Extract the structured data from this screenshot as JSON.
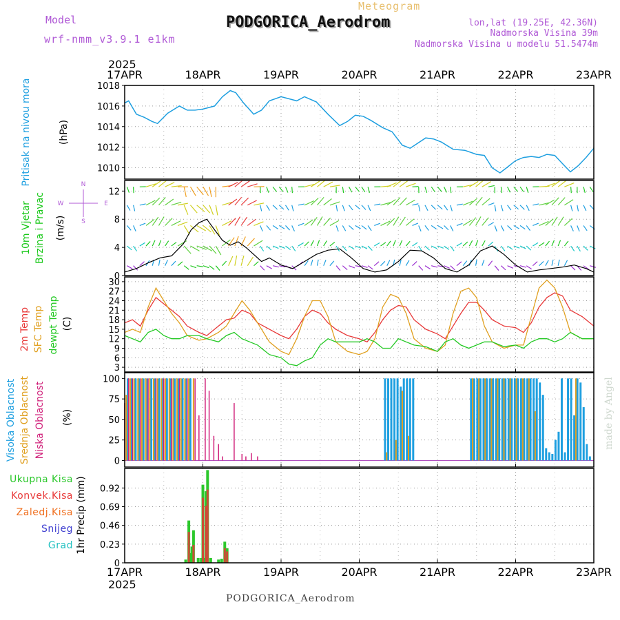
{
  "header": {
    "model_label": "Model",
    "model_name": "wrf-nmm_v3.9.1 e1km",
    "meteogram_label": "Meteogram",
    "station": "PODGORICA_Aerodrom",
    "lonlat": "lon,lat (19.25E, 42.36N)",
    "altitude": "Nadmorska Visina 39m",
    "model_altitude": "Nadmorska Visina u modelu 51.5474m",
    "year": "2025",
    "footer_station": "PODGORICA_Aerodrom",
    "credit": "made by Angel"
  },
  "colors": {
    "pressure": "#1e9fe0",
    "wind": "#19c819",
    "temp2m": "#e83838",
    "sfc": "#e0a020",
    "dewpt": "#22c822",
    "high_cloud": "#1e9fe0",
    "mid_cloud": "#e0a020",
    "low_cloud": "#d0207a",
    "total_precip": "#2cc82c",
    "conv_precip": "#e83838",
    "frozen": "#f07020",
    "snow": "#4040d0",
    "hail": "#20c0c0",
    "purple_text": "#b05ad6"
  },
  "chart_data": [
    {
      "type": "line",
      "panel": "pressure",
      "ylabel_lines": [
        "Pritisak na nivou mora"
      ],
      "unit": "(hPa)",
      "x_ticks": [
        "17APR",
        "18APR",
        "19APR",
        "20APR",
        "21APR",
        "22APR",
        "23APR"
      ],
      "x_range_days": [
        0,
        6
      ],
      "ylim": [
        1008.9,
        1018.0
      ],
      "yticks": [
        1010,
        1012,
        1014,
        1016,
        1018
      ],
      "grid": true,
      "series": [
        {
          "x": [
            0.0,
            0.05,
            0.15,
            0.25,
            0.35,
            0.42,
            0.55,
            0.7,
            0.8,
            0.9,
            1.0,
            1.15,
            1.25,
            1.35,
            1.42,
            1.52,
            1.65,
            1.75,
            1.85,
            2.0,
            2.1,
            2.2,
            2.3,
            2.45,
            2.6,
            2.75,
            2.85,
            2.95,
            3.05,
            3.15,
            3.3,
            3.42,
            3.55,
            3.65,
            3.75,
            3.85,
            3.95,
            4.05,
            4.2,
            4.35,
            4.5,
            4.6,
            4.7,
            4.8,
            4.9,
            5.0,
            5.1,
            5.2,
            5.3,
            5.4,
            5.5,
            5.6,
            5.7,
            5.8,
            5.9,
            6.0
          ],
          "y": [
            1016.3,
            1016.5,
            1015.2,
            1014.9,
            1014.5,
            1014.3,
            1015.3,
            1016.0,
            1015.6,
            1015.6,
            1015.7,
            1016.0,
            1016.9,
            1017.5,
            1017.3,
            1016.3,
            1015.2,
            1015.6,
            1016.5,
            1016.9,
            1016.7,
            1016.5,
            1016.9,
            1016.4,
            1015.2,
            1014.1,
            1014.5,
            1015.1,
            1015.0,
            1014.6,
            1013.9,
            1013.5,
            1012.2,
            1011.9,
            1012.4,
            1012.9,
            1012.8,
            1012.5,
            1011.8,
            1011.7,
            1011.3,
            1011.2,
            1010.0,
            1009.5,
            1010.1,
            1010.7,
            1011.0,
            1011.1,
            1011.0,
            1011.3,
            1011.2,
            1010.4,
            1009.6,
            1010.2,
            1011.0,
            1011.9
          ]
        }
      ]
    },
    {
      "type": "line",
      "panel": "wind",
      "ylabel_lines": [
        "10m Vjetar",
        "Brzina i Pravac"
      ],
      "unit": "(m/s)",
      "compass": {
        "n": "N",
        "s": "S",
        "e": "E",
        "w": "W"
      },
      "ylim": [
        0,
        13.5
      ],
      "yticks": [
        0,
        4,
        8,
        12
      ],
      "grid": true,
      "series": [
        {
          "x": [
            0.0,
            0.15,
            0.3,
            0.45,
            0.6,
            0.75,
            0.85,
            0.95,
            1.05,
            1.15,
            1.25,
            1.35,
            1.45,
            1.55,
            1.65,
            1.75,
            1.85,
            2.0,
            2.15,
            2.3,
            2.45,
            2.6,
            2.75,
            2.9,
            3.05,
            3.2,
            3.35,
            3.5,
            3.65,
            3.8,
            3.95,
            4.1,
            4.25,
            4.4,
            4.55,
            4.7,
            4.85,
            5.0,
            5.15,
            5.3,
            5.45,
            5.6,
            5.75,
            5.9,
            6.0
          ],
          "y": [
            0.5,
            1.0,
            1.8,
            2.5,
            2.8,
            4.5,
            6.5,
            7.5,
            8.0,
            6.5,
            5.0,
            4.3,
            4.8,
            4.0,
            3.0,
            2.0,
            2.5,
            1.5,
            1.0,
            2.0,
            3.0,
            3.6,
            3.8,
            2.5,
            1.0,
            0.5,
            0.8,
            2.0,
            3.6,
            3.5,
            2.5,
            1.0,
            0.5,
            1.5,
            3.5,
            4.2,
            3.0,
            1.5,
            0.5,
            0.8,
            1.0,
            1.2,
            1.5,
            1.0,
            0.5
          ]
        }
      ]
    },
    {
      "type": "line",
      "panel": "temperature",
      "ylabel_lines": [
        "2m Temp",
        "SFC Temp",
        "dewpt Temp"
      ],
      "unit": "(C)",
      "ylim": [
        1.5,
        31.5
      ],
      "yticks": [
        3,
        6,
        9,
        12,
        15,
        18,
        21,
        24,
        27,
        30
      ],
      "grid": true,
      "series": [
        {
          "name": "2m Temp",
          "x": [
            0.0,
            0.1,
            0.2,
            0.3,
            0.4,
            0.5,
            0.6,
            0.7,
            0.8,
            0.95,
            1.05,
            1.2,
            1.3,
            1.4,
            1.5,
            1.6,
            1.7,
            1.85,
            2.0,
            2.1,
            2.2,
            2.3,
            2.4,
            2.5,
            2.6,
            2.7,
            2.85,
            3.0,
            3.1,
            3.2,
            3.3,
            3.4,
            3.5,
            3.6,
            3.7,
            3.85,
            4.0,
            4.1,
            4.2,
            4.3,
            4.4,
            4.5,
            4.6,
            4.7,
            4.85,
            5.0,
            5.1,
            5.2,
            5.3,
            5.4,
            5.5,
            5.6,
            5.7,
            5.85,
            6.0
          ],
          "y": [
            17,
            18,
            16,
            21,
            25,
            23,
            21,
            19,
            16,
            14,
            13,
            16,
            18,
            18.5,
            21,
            20,
            17,
            15,
            13,
            12,
            15,
            19,
            21,
            20,
            17,
            15,
            13,
            12,
            11,
            14,
            18,
            21,
            22.5,
            22,
            18,
            15,
            13.5,
            12,
            16,
            20,
            23.5,
            23.5,
            21,
            18,
            16,
            15.5,
            14,
            17,
            22,
            25,
            26.5,
            25.5,
            21,
            19,
            16
          ]
        },
        {
          "name": "SFC Temp",
          "x": [
            0.0,
            0.1,
            0.2,
            0.3,
            0.4,
            0.5,
            0.6,
            0.7,
            0.8,
            0.95,
            1.05,
            1.2,
            1.3,
            1.4,
            1.5,
            1.6,
            1.7,
            1.85,
            2.0,
            2.1,
            2.2,
            2.3,
            2.4,
            2.5,
            2.6,
            2.7,
            2.85,
            3.0,
            3.1,
            3.2,
            3.3,
            3.4,
            3.5,
            3.6,
            3.7,
            3.85,
            4.0,
            4.1,
            4.2,
            4.3,
            4.4,
            4.5,
            4.6,
            4.7,
            4.85,
            5.0,
            5.1,
            5.2,
            5.3,
            5.4,
            5.5,
            5.6,
            5.7,
            5.85,
            6.0
          ],
          "y": [
            14,
            15,
            14,
            22,
            28,
            24,
            20,
            17,
            13,
            11.5,
            12,
            14,
            16,
            20,
            24,
            21,
            17,
            11,
            8,
            7,
            12,
            19,
            24,
            24,
            19,
            11,
            8,
            7,
            8,
            12,
            22,
            26,
            25,
            20,
            12,
            9,
            8,
            10,
            20,
            27,
            28,
            25,
            16,
            11,
            9,
            10,
            10,
            19,
            28,
            30.5,
            28,
            22,
            14,
            12,
            12
          ]
        },
        {
          "name": "dewpt Temp",
          "x": [
            0.0,
            0.1,
            0.2,
            0.3,
            0.4,
            0.5,
            0.6,
            0.7,
            0.8,
            0.95,
            1.05,
            1.2,
            1.3,
            1.4,
            1.5,
            1.6,
            1.7,
            1.85,
            2.0,
            2.1,
            2.2,
            2.3,
            2.4,
            2.5,
            2.6,
            2.7,
            2.85,
            3.0,
            3.1,
            3.2,
            3.3,
            3.4,
            3.5,
            3.6,
            3.7,
            3.85,
            4.0,
            4.1,
            4.2,
            4.3,
            4.4,
            4.5,
            4.6,
            4.7,
            4.85,
            5.0,
            5.1,
            5.2,
            5.3,
            5.4,
            5.5,
            5.6,
            5.7,
            5.85,
            6.0
          ],
          "y": [
            13,
            12,
            11,
            14,
            15,
            13,
            12,
            12,
            13,
            13,
            12,
            11,
            13,
            14,
            12,
            11,
            10,
            7,
            6,
            4,
            3.5,
            5,
            6,
            10,
            12,
            11,
            11,
            11,
            12,
            11,
            9,
            9,
            12,
            11,
            10,
            9.5,
            8,
            11,
            12,
            10,
            9,
            10,
            11,
            11,
            9.5,
            10,
            9,
            11,
            12,
            12,
            11,
            12,
            14,
            12,
            12
          ]
        }
      ]
    },
    {
      "type": "bar",
      "panel": "clouds",
      "ylabel_lines": [
        "Visoka Oblacnost",
        "Srednja Oblacnost",
        "Niska Oblacnost"
      ],
      "unit": "(%)",
      "ylim": [
        -8,
        107
      ],
      "yticks": [
        0,
        25,
        50,
        75,
        100
      ],
      "grid": true,
      "series": [
        {
          "name": "Visoka Oblacnost",
          "x": [
            0.04,
            0.09,
            0.14,
            0.19,
            0.24,
            0.29,
            0.34,
            0.39,
            0.44,
            0.49,
            0.54,
            0.59,
            0.64,
            0.69,
            0.74,
            0.79,
            0.84,
            3.33,
            3.37,
            3.41,
            3.45,
            3.49,
            3.53,
            3.57,
            3.61,
            3.65,
            3.69,
            4.43,
            4.47,
            4.51,
            4.55,
            4.59,
            4.63,
            4.67,
            4.71,
            4.75,
            4.79,
            4.83,
            4.87,
            4.91,
            4.95,
            4.99,
            5.03,
            5.07,
            5.11,
            5.15,
            5.19,
            5.23,
            5.27,
            5.31,
            5.35,
            5.39,
            5.43,
            5.47,
            5.51,
            5.55,
            5.59,
            5.63,
            5.67,
            5.71,
            5.75,
            5.79,
            5.83,
            5.87,
            5.91,
            5.95
          ],
          "values": [
            100,
            100,
            100,
            100,
            100,
            100,
            100,
            100,
            100,
            100,
            100,
            100,
            100,
            100,
            100,
            100,
            100,
            100,
            100,
            100,
            100,
            100,
            90,
            100,
            100,
            100,
            100,
            100,
            100,
            100,
            100,
            100,
            100,
            100,
            100,
            100,
            100,
            100,
            100,
            100,
            100,
            100,
            100,
            100,
            100,
            100,
            100,
            100,
            100,
            95,
            80,
            15,
            10,
            8,
            25,
            35,
            100,
            10,
            100,
            100,
            55,
            100,
            95,
            65,
            20,
            5
          ]
        },
        {
          "name": "Srednja Oblacnost",
          "x": [
            0.02,
            0.07,
            0.12,
            0.17,
            0.22,
            0.27,
            0.32,
            0.37,
            0.42,
            0.47,
            0.52,
            0.57,
            0.62,
            0.67,
            0.72,
            0.77,
            0.82,
            0.88,
            3.35,
            3.47,
            3.55,
            3.63,
            4.45,
            4.53,
            4.61,
            4.69,
            4.77,
            4.85,
            4.93,
            5.01,
            5.09,
            5.17,
            5.25,
            5.77
          ],
          "values": [
            80,
            100,
            100,
            100,
            100,
            100,
            100,
            100,
            100,
            100,
            100,
            100,
            100,
            100,
            100,
            100,
            100,
            100,
            10,
            25,
            85,
            30,
            100,
            100,
            100,
            100,
            100,
            100,
            100,
            100,
            100,
            100,
            60,
            100
          ]
        },
        {
          "name": "Niska Oblacnost",
          "x": [
            0.0,
            0.05,
            0.1,
            0.2,
            0.3,
            0.4,
            0.5,
            0.6,
            0.7,
            0.8,
            0.9,
            0.95,
            1.03,
            1.08,
            1.14,
            1.2,
            1.25,
            1.4,
            1.5,
            1.55,
            1.62,
            1.7
          ],
          "values": [
            70,
            100,
            100,
            100,
            100,
            100,
            100,
            100,
            100,
            100,
            100,
            55,
            100,
            85,
            30,
            20,
            5,
            70,
            8,
            5,
            9,
            5
          ]
        }
      ]
    },
    {
      "type": "bar",
      "panel": "precipitation",
      "ylabel_lines": [
        "1hr Precip (mm)"
      ],
      "legend": [
        "Ukupna Kisa",
        "Konvek.Kisa",
        "Zaledj.Kisa",
        "Snijeg",
        "Grad"
      ],
      "ylim": [
        0,
        1.16
      ],
      "yticks": [
        0,
        0.23,
        0.46,
        0.69,
        0.92
      ],
      "grid": true,
      "series": [
        {
          "name": "Ukupna Kisa",
          "x": [
            0.78,
            0.82,
            0.84,
            0.86,
            0.88,
            0.94,
            0.98,
            1.0,
            1.02,
            1.04,
            1.06,
            1.1,
            1.2,
            1.24,
            1.28,
            1.31
          ],
          "values": [
            0.04,
            0.52,
            0.12,
            0.2,
            0.4,
            0.06,
            0.06,
            0.96,
            0.06,
            0.88,
            1.14,
            0.06,
            0.04,
            0.05,
            0.26,
            0.18
          ]
        },
        {
          "name": "Konvek.Kisa",
          "x": [
            0.82,
            0.88,
            1.0,
            1.04,
            1.06,
            1.28,
            1.31
          ],
          "values": [
            0.38,
            0.22,
            0.8,
            0.7,
            0.9,
            0.18,
            0.14
          ]
        }
      ]
    }
  ]
}
